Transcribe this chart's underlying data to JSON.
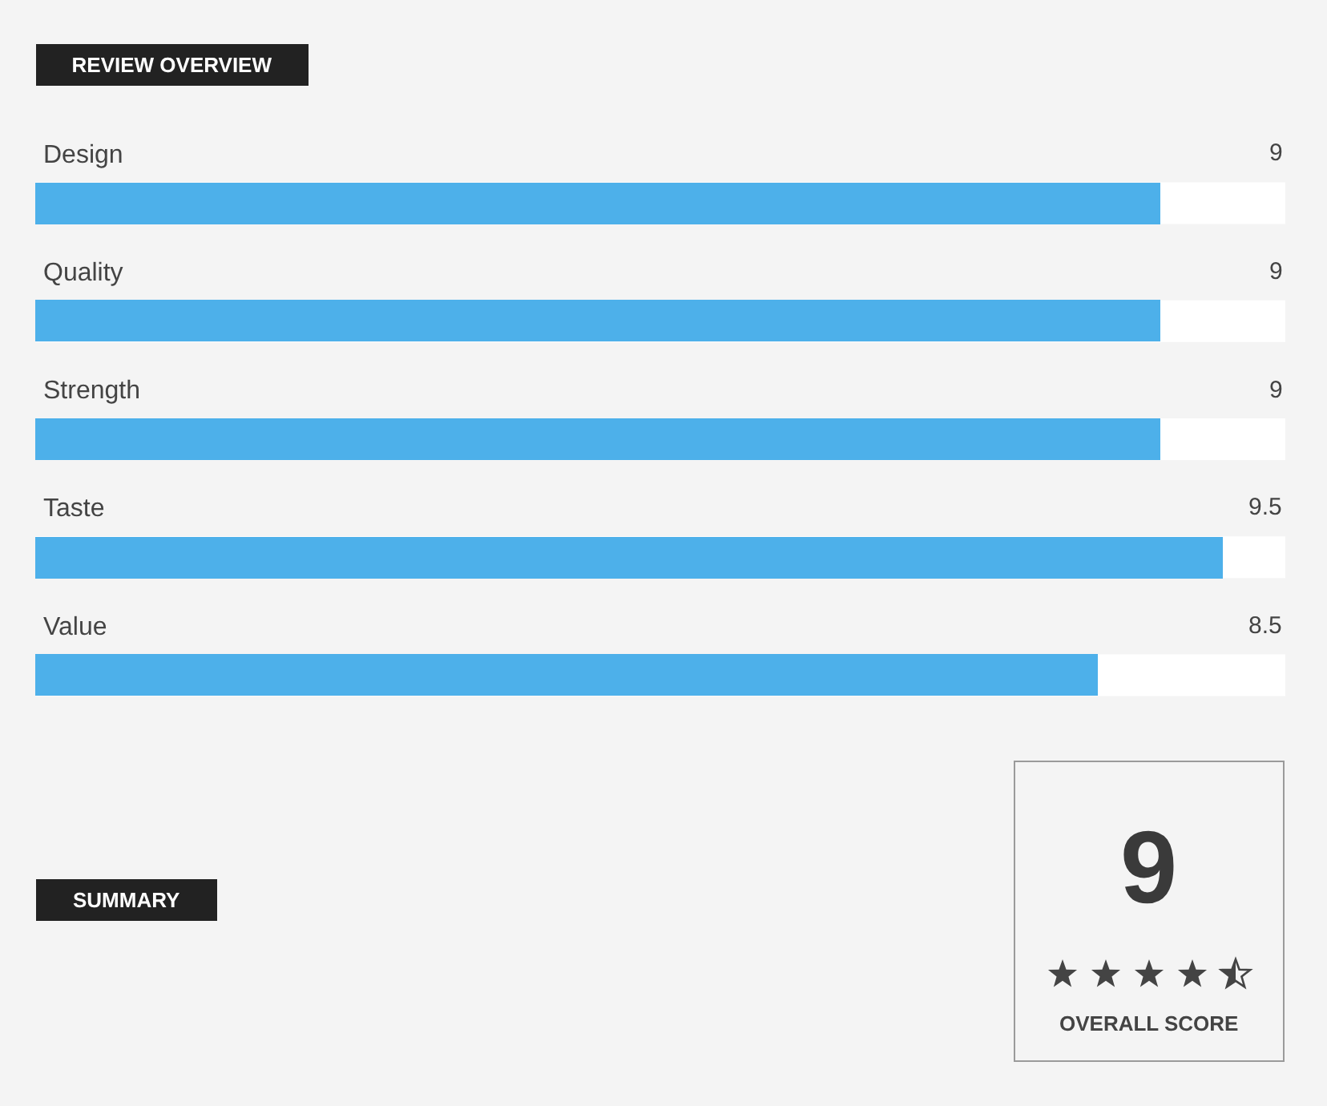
{
  "chart_data": {
    "type": "bar",
    "orientation": "horizontal",
    "title": "REVIEW OVERVIEW",
    "categories": [
      "Design",
      "Quality",
      "Strength",
      "Taste",
      "Value"
    ],
    "values": [
      9,
      9,
      9,
      9.5,
      8.5
    ],
    "color": "#4db0ea",
    "xlim": [
      0,
      10
    ],
    "data_labels": true,
    "tick_labels": "y",
    "annotations": [
      "SUMMARY",
      "9",
      "OVERALL SCORE"
    ]
  }
}
